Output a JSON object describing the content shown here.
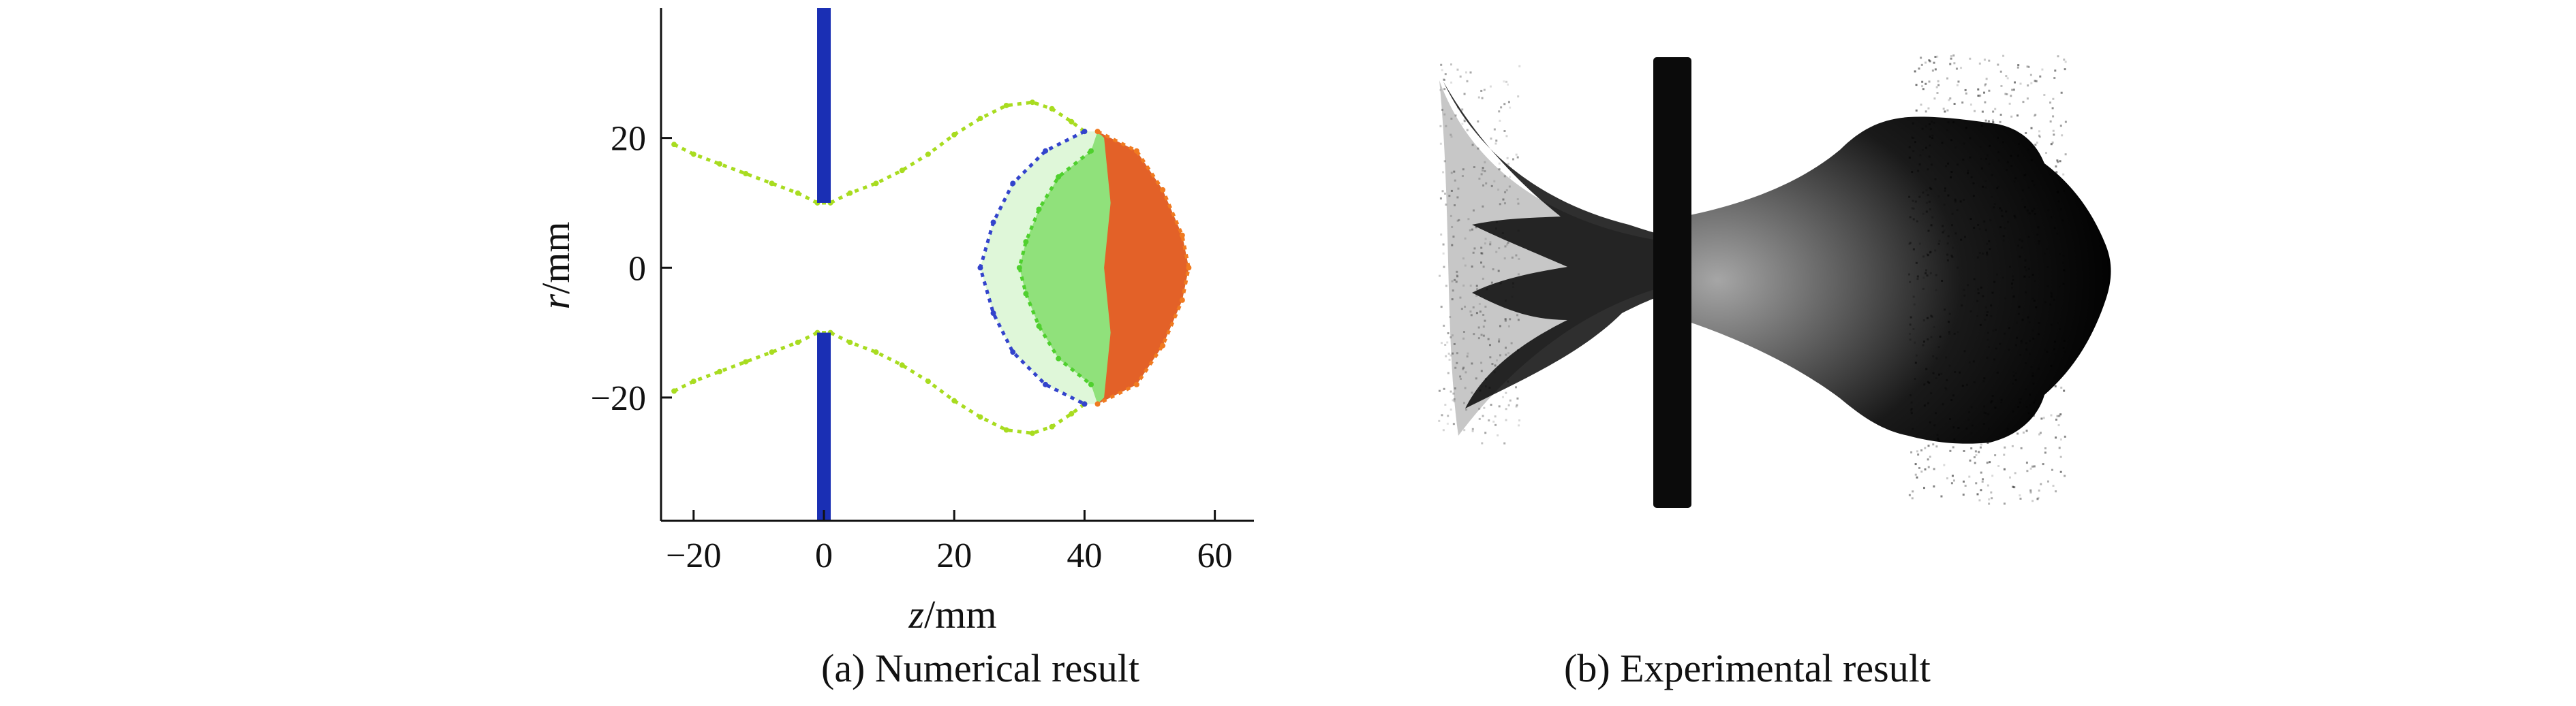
{
  "captions": {
    "a": "(a) Numerical result",
    "b": "(b) Experimental result"
  },
  "chart_data": [
    {
      "type": "scatter",
      "title": "(a) Numerical result",
      "xlabel_var": "z",
      "ylabel_var": "r",
      "unit": "/mm",
      "xlim": [
        -25,
        66
      ],
      "ylim": [
        -39,
        40
      ],
      "xticks": [
        -20,
        0,
        20,
        40,
        60
      ],
      "yticks": [
        -20,
        0,
        20
      ],
      "grid": false,
      "colors": {
        "electrode": "#1a2fb4",
        "blue": "#3344cc",
        "green": "#4fd02e",
        "yellowgreen": "#a8dc20",
        "orange": "#f07a20",
        "red": "#f24a1a"
      },
      "electrodes": [
        {
          "name": "upper",
          "z": 0,
          "r_from": 10,
          "r_to": 40
        },
        {
          "name": "lower",
          "z": 0,
          "r_from": -39,
          "r_to": -10
        }
      ],
      "series": [
        {
          "name": "outer-envelope-upper",
          "color": "yellowgreen",
          "points": [
            [
              -23,
              19
            ],
            [
              -20,
              17.5
            ],
            [
              -16,
              16
            ],
            [
              -12,
              14.5
            ],
            [
              -8,
              13
            ],
            [
              -4,
              11.5
            ],
            [
              -1,
              10
            ],
            [
              1,
              10
            ],
            [
              4,
              11.5
            ],
            [
              8,
              13
            ],
            [
              12,
              15
            ],
            [
              16,
              17.5
            ],
            [
              20,
              20.5
            ],
            [
              24,
              23
            ],
            [
              28,
              25
            ],
            [
              32,
              25.5
            ],
            [
              35,
              24.5
            ],
            [
              38,
              22.5
            ],
            [
              40,
              21
            ]
          ]
        },
        {
          "name": "outer-envelope-lower",
          "color": "yellowgreen",
          "points": [
            [
              -23,
              -19
            ],
            [
              -20,
              -17.5
            ],
            [
              -16,
              -16
            ],
            [
              -12,
              -14.5
            ],
            [
              -8,
              -13
            ],
            [
              -4,
              -11.5
            ],
            [
              -1,
              -10
            ],
            [
              1,
              -10
            ],
            [
              4,
              -11.5
            ],
            [
              8,
              -13
            ],
            [
              12,
              -15
            ],
            [
              16,
              -17.5
            ],
            [
              20,
              -20.5
            ],
            [
              24,
              -23
            ],
            [
              28,
              -25
            ],
            [
              32,
              -25.5
            ],
            [
              35,
              -24.5
            ],
            [
              38,
              -22.5
            ],
            [
              40,
              -21
            ]
          ]
        },
        {
          "name": "blue-shell",
          "color": "blue",
          "points": [
            [
              40,
              21
            ],
            [
              34,
              18
            ],
            [
              29,
              13
            ],
            [
              26,
              7
            ],
            [
              24,
              0
            ],
            [
              26,
              -7
            ],
            [
              29,
              -13
            ],
            [
              34,
              -18
            ],
            [
              40,
              -21
            ]
          ]
        },
        {
          "name": "green-shell",
          "color": "green",
          "points": [
            [
              41,
              18
            ],
            [
              36,
              14
            ],
            [
              33,
              9
            ],
            [
              31,
              4
            ],
            [
              30,
              0
            ],
            [
              31,
              -4
            ],
            [
              33,
              -9
            ],
            [
              36,
              -14
            ],
            [
              41,
              -18
            ]
          ]
        },
        {
          "name": "orange-front",
          "color": "orange",
          "points": [
            [
              42,
              21
            ],
            [
              48,
              18
            ],
            [
              52,
              12
            ],
            [
              55,
              5
            ],
            [
              56,
              0
            ],
            [
              55,
              -5
            ],
            [
              52,
              -12
            ],
            [
              48,
              -18
            ],
            [
              42,
              -21
            ]
          ]
        }
      ]
    }
  ]
}
